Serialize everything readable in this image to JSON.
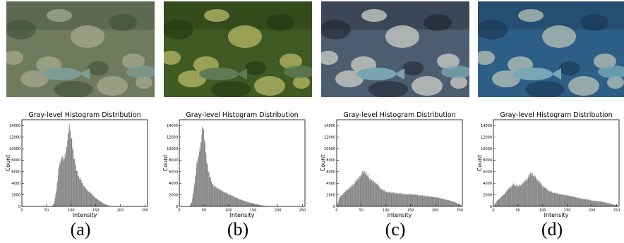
{
  "panels": [
    {
      "caption": "(a)",
      "photo": {
        "tint": "#6f7a5e",
        "shade": "#3d4a36",
        "light": "#a7ab90",
        "fish": "#7f9c94"
      }
    },
    {
      "caption": "(b)",
      "photo": {
        "tint": "#3f5a22",
        "shade": "#1f3311",
        "light": "#b9b96a",
        "fish": "#5f7a55"
      }
    },
    {
      "caption": "(c)",
      "photo": {
        "tint": "#4d5d70",
        "shade": "#1b1f2c",
        "light": "#cfd0c8",
        "fish": "#7aa6b4"
      }
    },
    {
      "caption": "(d)",
      "photo": {
        "tint": "#2d5f86",
        "shade": "#16304a",
        "light": "#b9c3b8",
        "fish": "#78a8b6"
      }
    }
  ],
  "chart_data": [
    {
      "type": "bar",
      "title": "Gray-level Histogram Distribution",
      "xlabel": "Intensity",
      "ylabel": "Count",
      "xlim": [
        0,
        255
      ],
      "ylim": [
        0,
        15000
      ],
      "xticks": [
        0,
        50,
        100,
        150,
        200,
        250
      ],
      "yticks": [
        0,
        2000,
        4000,
        6000,
        8000,
        10000,
        12000,
        14000
      ],
      "bar_color": "#808080",
      "x": [
        60,
        65,
        70,
        75,
        80,
        85,
        90,
        95,
        97,
        100,
        105,
        110,
        115,
        120,
        125,
        130,
        140,
        150,
        160,
        170,
        180
      ],
      "values": [
        0,
        500,
        3000,
        7000,
        8500,
        8000,
        10000,
        13500,
        13300,
        12000,
        8500,
        6500,
        5000,
        4500,
        3500,
        3000,
        2200,
        1400,
        800,
        300,
        0
      ]
    },
    {
      "type": "bar",
      "title": "Gray-level Histogram Distribution",
      "xlabel": "Intensity",
      "ylabel": "Count",
      "xlim": [
        0,
        255
      ],
      "ylim": [
        0,
        15000
      ],
      "xticks": [
        0,
        50,
        100,
        150,
        200,
        250
      ],
      "yticks": [
        0,
        2000,
        4000,
        6000,
        8000,
        10000,
        12000,
        14000
      ],
      "bar_color": "#808080",
      "x": [
        20,
        25,
        30,
        35,
        38,
        42,
        45,
        47,
        50,
        55,
        60,
        65,
        70,
        80,
        90,
        100,
        110,
        120,
        130,
        140,
        150,
        160,
        170,
        180
      ],
      "values": [
        0,
        800,
        3500,
        7500,
        8500,
        10000,
        12500,
        14200,
        12000,
        8000,
        5500,
        4200,
        3500,
        3000,
        2500,
        2100,
        1700,
        1300,
        1000,
        700,
        500,
        300,
        150,
        0
      ]
    },
    {
      "type": "bar",
      "title": "Gray-level Histogram Distribution",
      "xlabel": "Intensity",
      "ylabel": "Count",
      "xlim": [
        0,
        255
      ],
      "ylim": [
        0,
        15000
      ],
      "xticks": [
        0,
        50,
        100,
        150,
        200,
        250
      ],
      "yticks": [
        0,
        2000,
        4000,
        6000,
        8000,
        10000,
        12000,
        14000
      ],
      "bar_color": "#808080",
      "x": [
        0,
        5,
        10,
        20,
        30,
        40,
        50,
        55,
        60,
        70,
        80,
        90,
        100,
        110,
        120,
        130,
        140,
        150,
        160,
        170,
        180,
        190,
        200,
        210,
        220,
        230,
        240,
        250,
        255
      ],
      "values": [
        0,
        1500,
        2000,
        2800,
        3500,
        4500,
        5500,
        6200,
        5500,
        4500,
        4000,
        3000,
        2500,
        2400,
        2300,
        2200,
        2100,
        2100,
        2000,
        1900,
        1800,
        1700,
        1600,
        1400,
        1200,
        1000,
        700,
        300,
        0
      ]
    },
    {
      "type": "bar",
      "title": "Gray-level Histogram Distribution",
      "xlabel": "Intensity",
      "ylabel": "Count",
      "xlim": [
        0,
        255
      ],
      "ylim": [
        0,
        15000
      ],
      "xticks": [
        0,
        50,
        100,
        150,
        200,
        250
      ],
      "yticks": [
        0,
        2000,
        4000,
        6000,
        8000,
        10000,
        12000,
        14000
      ],
      "bar_color": "#808080",
      "x": [
        0,
        5,
        10,
        20,
        30,
        40,
        50,
        60,
        70,
        75,
        80,
        90,
        100,
        110,
        120,
        130,
        140,
        150,
        160,
        170,
        180,
        190,
        200,
        210,
        220,
        230,
        240,
        250,
        255
      ],
      "values": [
        0,
        800,
        1200,
        2000,
        3000,
        3800,
        3500,
        4000,
        5000,
        5800,
        5500,
        4500,
        3500,
        2800,
        2400,
        2200,
        2000,
        1900,
        1700,
        1500,
        1300,
        1200,
        1000,
        900,
        800,
        600,
        400,
        200,
        0
      ]
    }
  ]
}
